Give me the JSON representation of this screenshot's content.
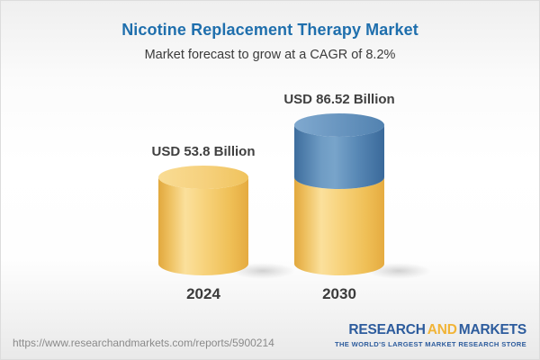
{
  "header": {
    "title": "Nicotine Replacement Therapy Market",
    "subtitle": "Market forecast to grow at a CAGR of 8.2%",
    "title_color": "#1f6fad",
    "subtitle_color": "#3b3b3b"
  },
  "chart_data": {
    "type": "bar",
    "style": "3d-cylinder",
    "categories": [
      "2024",
      "2030"
    ],
    "values": [
      53.8,
      86.52
    ],
    "value_labels": [
      "USD 53.8 Billion",
      "USD 86.52 Billion"
    ],
    "unit": "USD Billion",
    "cagr_percent": 8.2,
    "legend_position": "none",
    "grid": false,
    "annotation": "2030 cylinder shows the 2024 base in gold with incremental growth segment in blue",
    "colors": {
      "gold_edge": "#e2a83d",
      "gold_highlight": "#fbe09c",
      "gold_top": "#f6d17e",
      "blue_edge": "#3d6d9d",
      "blue_highlight": "#78a4ca",
      "blue_top": "#6f9cc6",
      "label_color": "#404040"
    }
  },
  "footer": {
    "url": "https://www.researchandmarkets.com/reports/5900214",
    "logo": {
      "word1": "RESEARCH",
      "word2": "AND",
      "word3": "MARKETS",
      "tagline": "THE WORLD'S LARGEST MARKET RESEARCH STORE",
      "blue": "#2d5c9d",
      "gold": "#f1b437"
    }
  }
}
